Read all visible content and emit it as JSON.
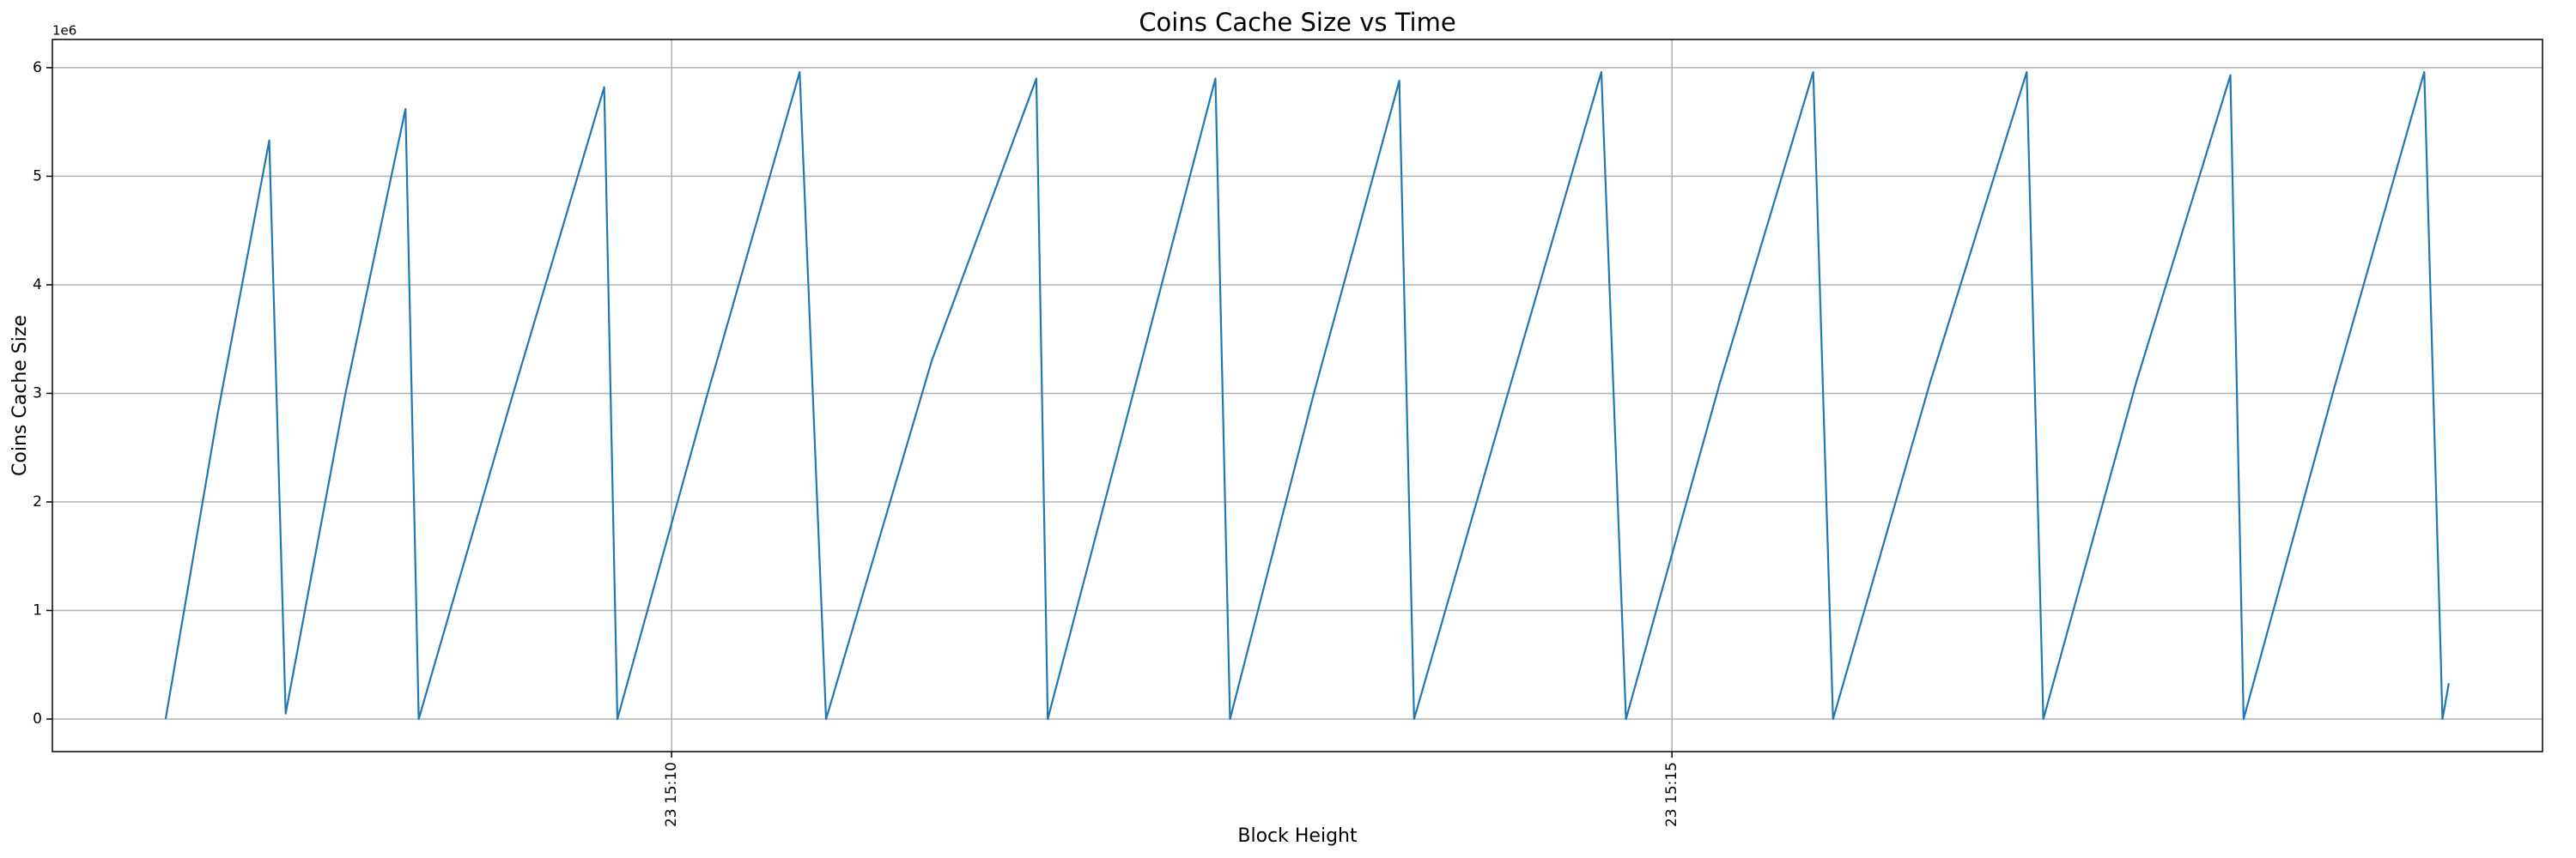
{
  "chart_data": {
    "type": "line",
    "title": "Coins Cache Size vs Time",
    "x_label": "Block Height",
    "y_label": "Coins Cache Size",
    "y_offset_label": "1e6",
    "color": "#1f77b4",
    "grid": true,
    "x": [
      7.471,
      7.73,
      7.989,
      8.071,
      8.37,
      8.67,
      8.736,
      9.2,
      9.663,
      9.729,
      10.18,
      10.64,
      10.772,
      11.3,
      11.823,
      11.88,
      12.3,
      12.718,
      12.791,
      13.21,
      13.637,
      13.711,
      14.18,
      14.647,
      14.77,
      15.24,
      15.706,
      15.805,
      16.29,
      16.773,
      16.856,
      17.32,
      17.791,
      17.857,
      18.31,
      18.76,
      18.851,
      18.883
    ],
    "values": [
      0,
      2800000,
      5330000,
      50000,
      3000000,
      5620000,
      0,
      2950000,
      5820000,
      0,
      3000000,
      5960000,
      0,
      3300000,
      5900000,
      0,
      2950000,
      5900000,
      0,
      3000000,
      5880000,
      0,
      3000000,
      5960000,
      0,
      3100000,
      5960000,
      0,
      3100000,
      5960000,
      0,
      3100000,
      5930000,
      0,
      3050000,
      5960000,
      0,
      330000
    ],
    "xlim": [
      6.905,
      19.351
    ],
    "xticks": [
      {
        "value": 10,
        "label": "23 15:10"
      },
      {
        "value": 15,
        "label": "23 15:15"
      }
    ],
    "ylim": [
      -300000,
      6260000
    ],
    "yticks": [
      {
        "value": 0,
        "label": "0"
      },
      {
        "value": 1000000,
        "label": "1"
      },
      {
        "value": 2000000,
        "label": "2"
      },
      {
        "value": 3000000,
        "label": "3"
      },
      {
        "value": 4000000,
        "label": "4"
      },
      {
        "value": 5000000,
        "label": "5"
      },
      {
        "value": 6000000,
        "label": "6"
      }
    ]
  }
}
